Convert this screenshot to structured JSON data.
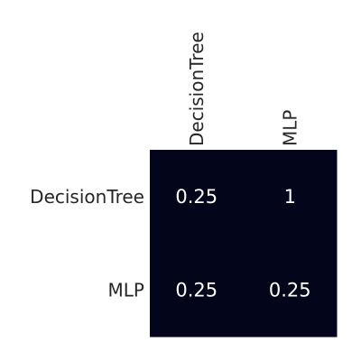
{
  "chart_data": {
    "type": "heatmap",
    "title": "",
    "xlabel": "",
    "ylabel": "",
    "x_categories": [
      "DecisionTree",
      "MLP"
    ],
    "y_categories": [
      "DecisionTree",
      "MLP"
    ],
    "values": [
      [
        0.25,
        1
      ],
      [
        0.25,
        0.25
      ]
    ],
    "cell_labels": [
      [
        "0.25",
        "1"
      ],
      [
        "0.25",
        "0.25"
      ]
    ],
    "x_tick_position": "top",
    "x_tick_rotation": "vertical",
    "colorbar": false,
    "cell_color": "#03051a",
    "cell_text_color": "#ffffff",
    "tick_text_color": "#262626",
    "background_color": "#ffffff"
  }
}
